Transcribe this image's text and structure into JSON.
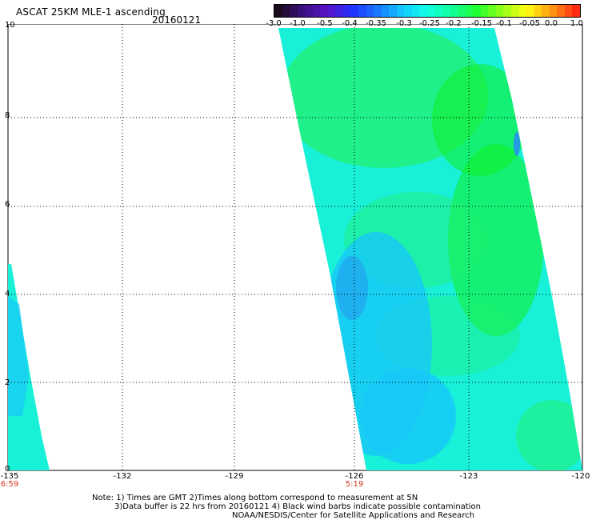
{
  "header": {
    "title": "ASCAT 25KM MLE-1 ascending",
    "date": "20160121"
  },
  "colorbar": {
    "labels": [
      "-3.0",
      "-1.0",
      "-0.5",
      "-0.4",
      "-0.35",
      "-0.3",
      "-0.25",
      "-0.2",
      "-0.15",
      "-0.1",
      "-0.05",
      "0.0",
      "1.0"
    ],
    "colors": [
      "#1a0a1a",
      "#3a1180",
      "#5a12c8",
      "#2030ff",
      "#1a78ff",
      "#12c8ff",
      "#12ffe6",
      "#12ff9a",
      "#20ff30",
      "#8eff18",
      "#ffff12",
      "#ff9a12",
      "#ff2a12"
    ]
  },
  "map": {
    "y_axis": [
      "10",
      "8",
      "6",
      "4",
      "2",
      "0"
    ],
    "x_axis": [
      "-135",
      "-132",
      "-129",
      "-126",
      "-123",
      "-120"
    ],
    "time_labels": [
      "6:59",
      "5:19"
    ],
    "swath_colors": {
      "base": "#18f0d8",
      "green": "#22f070",
      "bright_green": "#10f020",
      "blue": "#18c8f8",
      "deep_blue": "#2890f0"
    }
  },
  "notes": {
    "line1": "Note: 1) Times are GMT 2)Times along bottom correspond to measurement at 5N",
    "line2": "3)Data buffer is 22 hrs from 20160121 4) Black wind barbs indicate possible contamination",
    "line3": "NOAA/NESDIS/Center for Satellite Applications and Research"
  }
}
